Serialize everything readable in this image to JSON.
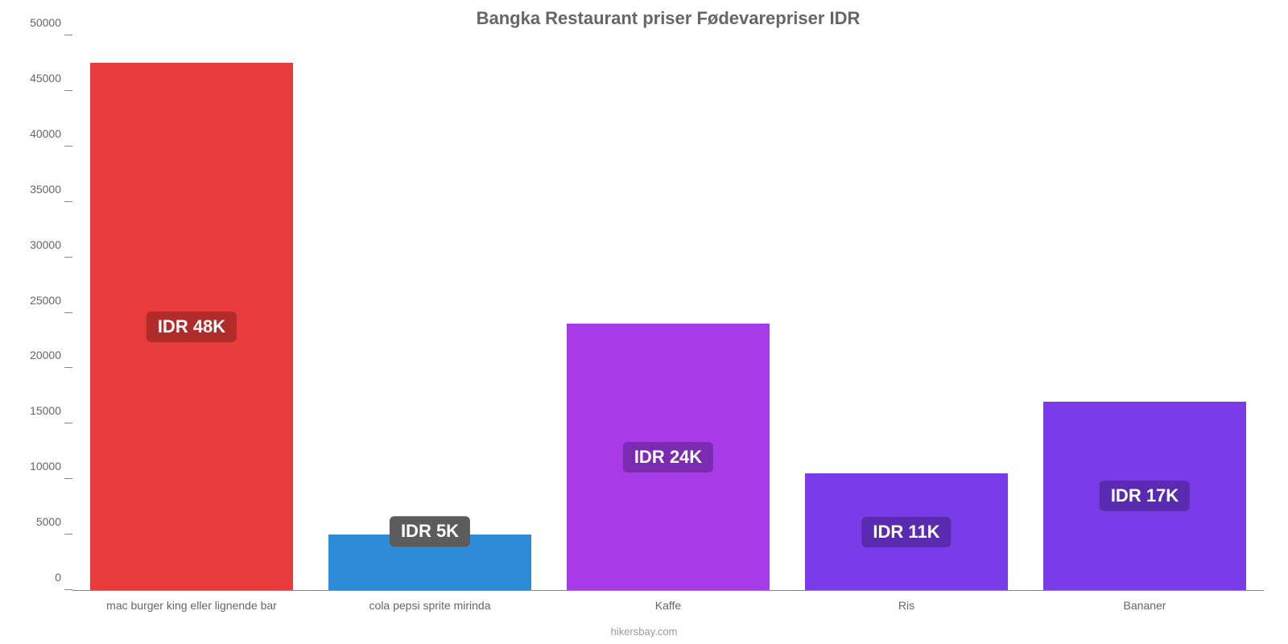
{
  "chart": {
    "type": "bar",
    "title": "Bangka Restaurant priser Fødevarepriser IDR",
    "title_fontsize": 22,
    "title_color": "#666666",
    "background_color": "#ffffff",
    "axis_color": "#888888",
    "label_color": "#666666",
    "label_fontsize": 14,
    "ylim": [
      0,
      50000
    ],
    "ytick_step": 5000,
    "yticks": [
      {
        "value": 0,
        "label": "0"
      },
      {
        "value": 5000,
        "label": "5000"
      },
      {
        "value": 10000,
        "label": "10000"
      },
      {
        "value": 15000,
        "label": "15000"
      },
      {
        "value": 20000,
        "label": "20000"
      },
      {
        "value": 25000,
        "label": "25000"
      },
      {
        "value": 30000,
        "label": "30000"
      },
      {
        "value": 35000,
        "label": "35000"
      },
      {
        "value": 40000,
        "label": "40000"
      },
      {
        "value": 45000,
        "label": "45000"
      },
      {
        "value": 50000,
        "label": "50000"
      }
    ],
    "bar_width_pct": 85,
    "badge_fontsize": 22,
    "badge_text_color": "#ffffff",
    "source": "hikersbay.com",
    "items": [
      {
        "category": "mac burger king eller lignende bar",
        "value": 47500,
        "value_label": "IDR 48K",
        "bar_color": "#e83b3b",
        "badge_color": "#b12b2b"
      },
      {
        "category": "cola pepsi sprite mirinda",
        "value": 5000,
        "value_label": "IDR 5K",
        "bar_color": "#2e8bd8",
        "badge_color": "#5c5c5c"
      },
      {
        "category": "Kaffe",
        "value": 24000,
        "value_label": "IDR 24K",
        "bar_color": "#a83be8",
        "badge_color": "#7a2bb1"
      },
      {
        "category": "Ris",
        "value": 10500,
        "value_label": "IDR 11K",
        "bar_color": "#7a3be8",
        "badge_color": "#5a2bb1"
      },
      {
        "category": "Bananer",
        "value": 17000,
        "value_label": "IDR 17K",
        "bar_color": "#7a3be8",
        "badge_color": "#5a2bb1"
      }
    ]
  }
}
